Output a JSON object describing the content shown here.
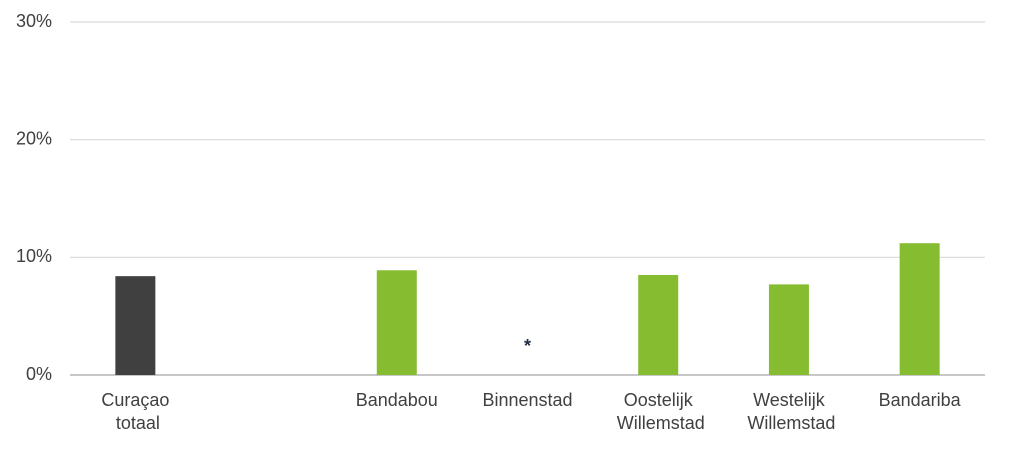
{
  "chart_data": {
    "type": "bar",
    "categories": [
      "Curaçao totaal",
      null,
      "Bandabou",
      "Binnenstad",
      "Oostelijk Willemstad",
      "Westelijk Willemstad",
      "Bandariba"
    ],
    "values": [
      8.4,
      null,
      8.9,
      null,
      8.5,
      7.7,
      11.2
    ],
    "value_labels": [
      null,
      null,
      null,
      "*",
      null,
      null,
      null
    ],
    "colors": [
      "#404040",
      null,
      "#86bc2f",
      null,
      "#86bc2f",
      "#86bc2f",
      "#86bc2f"
    ],
    "ylim": [
      0,
      30
    ],
    "yticks": [
      {
        "value": 0,
        "label": "0%"
      },
      {
        "value": 10,
        "label": "10%"
      },
      {
        "value": 20,
        "label": "20%"
      },
      {
        "value": 30,
        "label": "30%"
      }
    ],
    "grid": true
  }
}
